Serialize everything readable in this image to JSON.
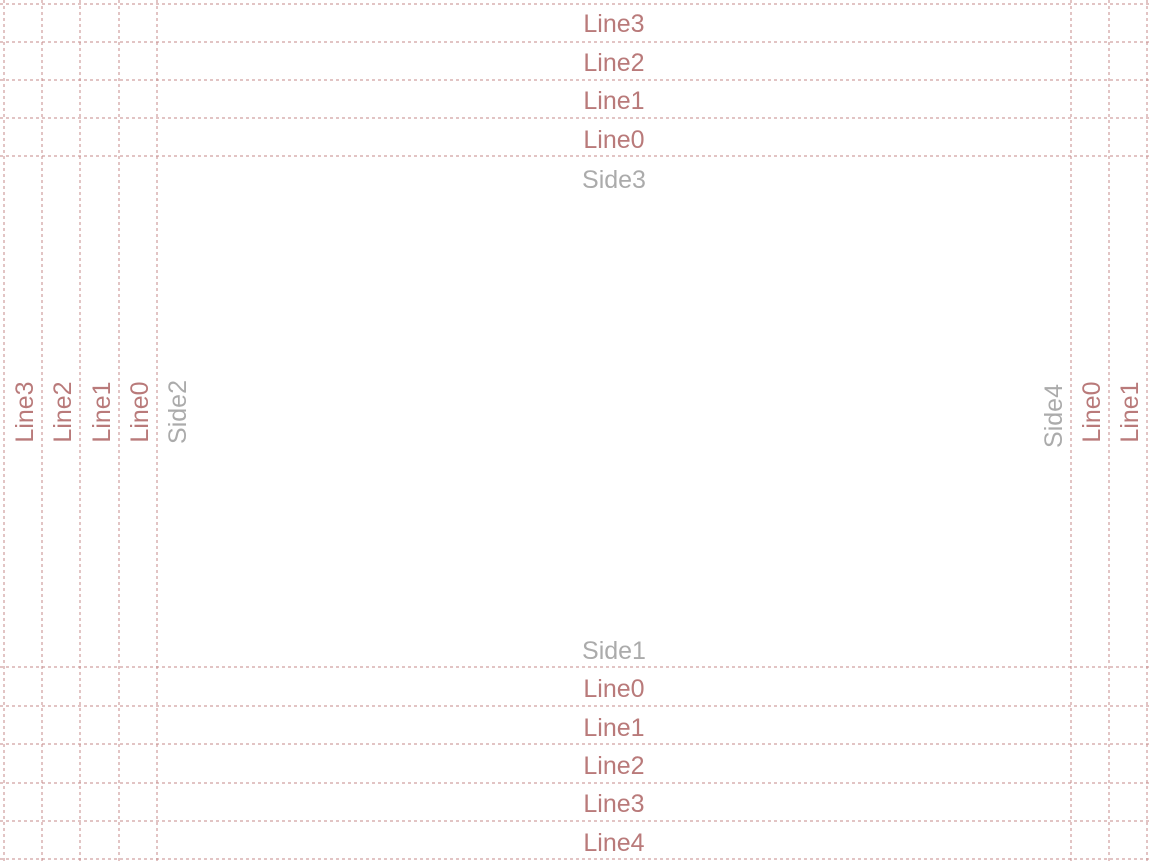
{
  "colors": {
    "line_color": "#b97a7a",
    "side_color": "#ababab",
    "guide_color": "#c48a8a"
  },
  "labels": {
    "top": {
      "line3": "Line3",
      "line2": "Line2",
      "line1": "Line1",
      "line0": "Line0",
      "side": "Side3"
    },
    "bottom": {
      "side": "Side1",
      "line0": "Line0",
      "line1": "Line1",
      "line2": "Line2",
      "line3": "Line3",
      "line4": "Line4"
    },
    "left": {
      "line3": "Line3",
      "line2": "Line2",
      "line1": "Line1",
      "line0": "Line0",
      "side": "Side2"
    },
    "right": {
      "side": "Side4",
      "line0": "Line0",
      "line1": "Line1"
    }
  }
}
